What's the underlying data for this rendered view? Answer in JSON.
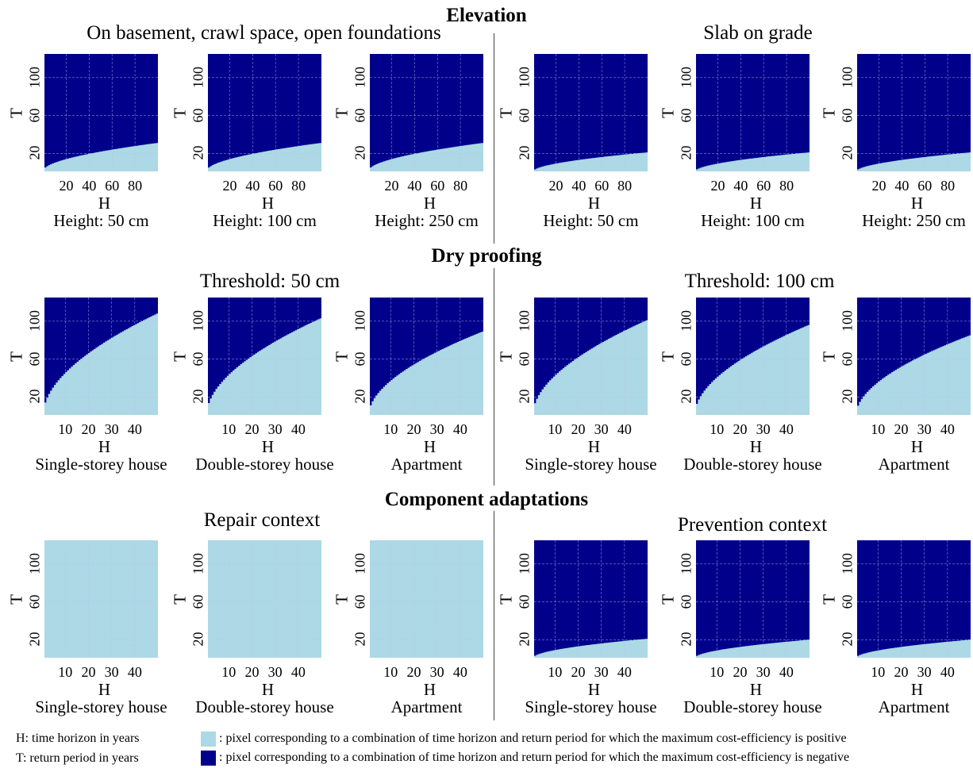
{
  "colors": {
    "positive": "#add8e6",
    "negative": "#00008b",
    "grid": "#b8c4f0"
  },
  "sections": [
    {
      "title": "Elevation",
      "groups": [
        {
          "title": "On basement, crawl space, open foundations"
        },
        {
          "title": "Slab on grade"
        }
      ]
    },
    {
      "title": "Dry proofing",
      "groups": [
        {
          "title": "Threshold: 50 cm"
        },
        {
          "title": "Threshold: 100 cm"
        }
      ]
    },
    {
      "title": "Component adaptations",
      "groups": [
        {
          "title": "Repair context"
        },
        {
          "title": "Prevention context"
        }
      ]
    }
  ],
  "legend": {
    "abbreviations": [
      "H: time horizon in years",
      "T: return period in years"
    ],
    "items": [
      {
        "color": "#add8e6",
        "text": ": pixel corresponding to a combination of time horizon and return period for which the maximum cost-efficiency is positive"
      },
      {
        "color": "#00008b",
        "text": ": pixel corresponding to a combination of time horizon and return period for which the maximum cost-efficiency is negative"
      }
    ]
  },
  "chart_data": [
    {
      "type": "heatmap",
      "section": "Elevation",
      "group": "On basement, crawl space, open foundations",
      "caption": "Height: 50 cm",
      "xlabel": "H",
      "ylabel": "T",
      "xlim": [
        1,
        100
      ],
      "ylim": [
        1,
        125
      ],
      "xticks": [
        20,
        40,
        60,
        80
      ],
      "yticks": [
        20,
        60,
        100
      ],
      "boundary": {
        "T_at_min_H": 2,
        "T_at_max_H": 31
      }
    },
    {
      "type": "heatmap",
      "section": "Elevation",
      "group": "On basement, crawl space, open foundations",
      "caption": "Height: 100 cm",
      "xlabel": "H",
      "ylabel": "T",
      "xlim": [
        1,
        100
      ],
      "ylim": [
        1,
        125
      ],
      "xticks": [
        20,
        40,
        60,
        80
      ],
      "yticks": [
        20,
        60,
        100
      ],
      "boundary": {
        "T_at_min_H": 2,
        "T_at_max_H": 31
      }
    },
    {
      "type": "heatmap",
      "section": "Elevation",
      "group": "On basement, crawl space, open foundations",
      "caption": "Height: 250 cm",
      "xlabel": "H",
      "ylabel": "T",
      "xlim": [
        1,
        100
      ],
      "ylim": [
        1,
        125
      ],
      "xticks": [
        20,
        40,
        60,
        80
      ],
      "yticks": [
        20,
        60,
        100
      ],
      "boundary": {
        "T_at_min_H": 2,
        "T_at_max_H": 31
      }
    },
    {
      "type": "heatmap",
      "section": "Elevation",
      "group": "Slab on grade",
      "caption": "Height: 50 cm",
      "xlabel": "H",
      "ylabel": "T",
      "xlim": [
        1,
        100
      ],
      "ylim": [
        1,
        125
      ],
      "xticks": [
        20,
        40,
        60,
        80
      ],
      "yticks": [
        20,
        60,
        100
      ],
      "boundary": {
        "T_at_min_H": 1,
        "T_at_max_H": 21
      }
    },
    {
      "type": "heatmap",
      "section": "Elevation",
      "group": "Slab on grade",
      "caption": "Height: 100 cm",
      "xlabel": "H",
      "ylabel": "T",
      "xlim": [
        1,
        100
      ],
      "ylim": [
        1,
        125
      ],
      "xticks": [
        20,
        40,
        60,
        80
      ],
      "yticks": [
        20,
        60,
        100
      ],
      "boundary": {
        "T_at_min_H": 1,
        "T_at_max_H": 21
      }
    },
    {
      "type": "heatmap",
      "section": "Elevation",
      "group": "Slab on grade",
      "caption": "Height: 250 cm",
      "xlabel": "H",
      "ylabel": "T",
      "xlim": [
        1,
        100
      ],
      "ylim": [
        1,
        125
      ],
      "xticks": [
        20,
        40,
        60,
        80
      ],
      "yticks": [
        20,
        60,
        100
      ],
      "boundary": {
        "T_at_min_H": 1,
        "T_at_max_H": 21
      }
    },
    {
      "type": "heatmap",
      "section": "Dry proofing",
      "group": "Threshold: 50 cm",
      "caption": "Single-storey house",
      "xlabel": "H",
      "ylabel": "T",
      "xlim": [
        1,
        50
      ],
      "ylim": [
        1,
        125
      ],
      "xticks": [
        10,
        20,
        30,
        40
      ],
      "yticks": [
        20,
        60,
        100
      ],
      "boundary": {
        "T_at_min_H": 3,
        "T_at_max_H": 108
      }
    },
    {
      "type": "heatmap",
      "section": "Dry proofing",
      "group": "Threshold: 50 cm",
      "caption": "Double-storey house",
      "xlabel": "H",
      "ylabel": "T",
      "xlim": [
        1,
        50
      ],
      "ylim": [
        1,
        125
      ],
      "xticks": [
        10,
        20,
        30,
        40
      ],
      "yticks": [
        20,
        60,
        100
      ],
      "boundary": {
        "T_at_min_H": 3,
        "T_at_max_H": 103
      }
    },
    {
      "type": "heatmap",
      "section": "Dry proofing",
      "group": "Threshold: 50 cm",
      "caption": "Apartment",
      "xlabel": "H",
      "ylabel": "T",
      "xlim": [
        1,
        50
      ],
      "ylim": [
        1,
        125
      ],
      "xticks": [
        10,
        20,
        30,
        40
      ],
      "yticks": [
        20,
        60,
        100
      ],
      "boundary": {
        "T_at_min_H": 2,
        "T_at_max_H": 89
      }
    },
    {
      "type": "heatmap",
      "section": "Dry proofing",
      "group": "Threshold: 100 cm",
      "caption": "Single-storey house",
      "xlabel": "H",
      "ylabel": "T",
      "xlim": [
        1,
        50
      ],
      "ylim": [
        1,
        125
      ],
      "xticks": [
        10,
        20,
        30,
        40
      ],
      "yticks": [
        20,
        60,
        100
      ],
      "boundary": {
        "T_at_min_H": 3,
        "T_at_max_H": 101
      }
    },
    {
      "type": "heatmap",
      "section": "Dry proofing",
      "group": "Threshold: 100 cm",
      "caption": "Double-storey house",
      "xlabel": "H",
      "ylabel": "T",
      "xlim": [
        1,
        50
      ],
      "ylim": [
        1,
        125
      ],
      "xticks": [
        10,
        20,
        30,
        40
      ],
      "yticks": [
        20,
        60,
        100
      ],
      "boundary": {
        "T_at_min_H": 3,
        "T_at_max_H": 96
      }
    },
    {
      "type": "heatmap",
      "section": "Dry proofing",
      "group": "Threshold: 100 cm",
      "caption": "Apartment",
      "xlabel": "H",
      "ylabel": "T",
      "xlim": [
        1,
        50
      ],
      "ylim": [
        1,
        125
      ],
      "xticks": [
        10,
        20,
        30,
        40
      ],
      "yticks": [
        20,
        60,
        100
      ],
      "boundary": {
        "T_at_min_H": 2,
        "T_at_max_H": 85
      }
    },
    {
      "type": "heatmap",
      "section": "Component adaptations",
      "group": "Repair context",
      "caption": "Single-storey house",
      "xlabel": "H",
      "ylabel": "T",
      "xlim": [
        1,
        50
      ],
      "ylim": [
        1,
        125
      ],
      "xticks": [
        10,
        20,
        30,
        40
      ],
      "yticks": [
        20,
        60,
        100
      ],
      "boundary": null
    },
    {
      "type": "heatmap",
      "section": "Component adaptations",
      "group": "Repair context",
      "caption": "Double-storey house",
      "xlabel": "H",
      "ylabel": "T",
      "xlim": [
        1,
        50
      ],
      "ylim": [
        1,
        125
      ],
      "xticks": [
        10,
        20,
        30,
        40
      ],
      "yticks": [
        20,
        60,
        100
      ],
      "boundary": null
    },
    {
      "type": "heatmap",
      "section": "Component adaptations",
      "group": "Repair context",
      "caption": "Apartment",
      "xlabel": "H",
      "ylabel": "T",
      "xlim": [
        1,
        50
      ],
      "ylim": [
        1,
        125
      ],
      "xticks": [
        10,
        20,
        30,
        40
      ],
      "yticks": [
        20,
        60,
        100
      ],
      "boundary": null
    },
    {
      "type": "heatmap",
      "section": "Component adaptations",
      "group": "Prevention context",
      "caption": "Single-storey house",
      "xlabel": "H",
      "ylabel": "T",
      "xlim": [
        1,
        50
      ],
      "ylim": [
        1,
        125
      ],
      "xticks": [
        10,
        20,
        30,
        40
      ],
      "yticks": [
        20,
        60,
        100
      ],
      "boundary": {
        "T_at_min_H": 1,
        "T_at_max_H": 21
      }
    },
    {
      "type": "heatmap",
      "section": "Component adaptations",
      "group": "Prevention context",
      "caption": "Double-storey house",
      "xlabel": "H",
      "ylabel": "T",
      "xlim": [
        1,
        50
      ],
      "ylim": [
        1,
        125
      ],
      "xticks": [
        10,
        20,
        30,
        40
      ],
      "yticks": [
        20,
        60,
        100
      ],
      "boundary": {
        "T_at_min_H": 1,
        "T_at_max_H": 20
      }
    },
    {
      "type": "heatmap",
      "section": "Component adaptations",
      "group": "Prevention context",
      "caption": "Apartment",
      "xlabel": "H",
      "ylabel": "T",
      "xlim": [
        1,
        50
      ],
      "ylim": [
        1,
        125
      ],
      "xticks": [
        10,
        20,
        30,
        40
      ],
      "yticks": [
        20,
        60,
        100
      ],
      "boundary": {
        "T_at_min_H": 1,
        "T_at_max_H": 20
      }
    }
  ]
}
